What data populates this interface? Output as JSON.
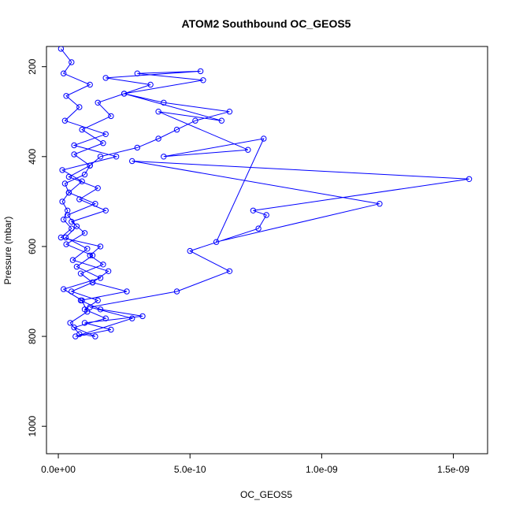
{
  "chart_data": {
    "type": "scatter",
    "title": "ATOM2 Southbound OC_GEOS5",
    "xlabel": "OC_GEOS5",
    "ylabel": "Pressure (mbar)",
    "xlim": [
      -4.5e-11,
      1.63e-09
    ],
    "ylim": [
      1061,
      155
    ],
    "y_reversed": true,
    "x_ticks": [
      {
        "value": 0,
        "label": "0.0e+00"
      },
      {
        "value": 5e-10,
        "label": "5.0e-10"
      },
      {
        "value": 1e-09,
        "label": "1.0e-09"
      },
      {
        "value": 1.5e-09,
        "label": "1.5e-09"
      }
    ],
    "y_ticks": [
      {
        "value": 200,
        "label": "200"
      },
      {
        "value": 400,
        "label": "400"
      },
      {
        "value": 600,
        "label": "600"
      },
      {
        "value": 800,
        "label": "800"
      },
      {
        "value": 1000,
        "label": "1000"
      }
    ],
    "grid": false,
    "legend": "none",
    "series": [
      {
        "color": "#0000ff",
        "marker": "open-circle",
        "connected": true,
        "x": [
          1e-11,
          5e-11,
          2e-11,
          1.2e-10,
          3e-11,
          8e-11,
          2.5e-11,
          1.8e-10,
          6e-11,
          2.2e-10,
          1.5e-11,
          9e-11,
          4e-11,
          1.4e-10,
          3.5e-11,
          7e-11,
          2.8e-11,
          1.1e-10,
          5.5e-11,
          1.9e-10,
          1.3e-10,
          2.6e-10,
          8.5e-11,
          1.6e-10,
          3.2e-10,
          1e-10,
          2e-10,
          6.5e-11,
          2.8e-10,
          1.2e-10,
          4.5e-10,
          6.5e-10,
          5e-10,
          7.6e-10,
          7.9e-10,
          7.4e-10,
          1.56e-09,
          2.8e-10,
          1.22e-09,
          6e-10,
          7.8e-10,
          4e-10,
          7.2e-10,
          3.8e-10,
          6.2e-10,
          2.5e-10,
          5.5e-10,
          3e-10,
          5.4e-10,
          1.8e-10,
          3.5e-10,
          1.5e-10,
          2e-10,
          9e-11,
          1.7e-10,
          6e-11,
          1.2e-10,
          4e-11,
          1.5e-10,
          8e-11,
          1.8e-10,
          5e-11,
          1e-10,
          3e-11,
          1.3e-10,
          7e-11,
          1.6e-10,
          2e-11,
          9e-11,
          1.1e-10,
          4.5e-11,
          8e-11,
          1.4e-10,
          6e-11,
          1.8e-10,
          1e-10,
          1.5e-10,
          5e-11,
          1.3e-10,
          8.5e-11,
          1.7e-10,
          1.2e-10,
          1.6e-10,
          1e-11,
          5e-11,
          2e-11,
          3.5e-11,
          1.5e-11,
          4e-11,
          2.5e-11,
          1e-10,
          1.2e-10,
          1.6e-10,
          3e-10,
          3.8e-10,
          4.5e-10,
          5.2e-10,
          6.5e-10,
          4e-10,
          2.5e-10
        ],
        "y": [
          160,
          190,
          215,
          240,
          265,
          290,
          320,
          350,
          375,
          400,
          430,
          455,
          480,
          505,
          530,
          555,
          580,
          605,
          630,
          655,
          680,
          700,
          720,
          740,
          755,
          770,
          785,
          800,
          760,
          735,
          700,
          655,
          610,
          560,
          530,
          520,
          450,
          410,
          505,
          590,
          360,
          400,
          385,
          300,
          320,
          260,
          230,
          215,
          210,
          225,
          240,
          280,
          310,
          340,
          370,
          395,
          420,
          445,
          470,
          495,
          520,
          545,
          570,
          595,
          620,
          645,
          670,
          695,
          720,
          745,
          770,
          795,
          800,
          780,
          760,
          740,
          720,
          700,
          680,
          660,
          640,
          620,
          600,
          580,
          560,
          540,
          520,
          500,
          480,
          460,
          440,
          420,
          400,
          380,
          360,
          340,
          320,
          300,
          280,
          260
        ]
      }
    ]
  }
}
